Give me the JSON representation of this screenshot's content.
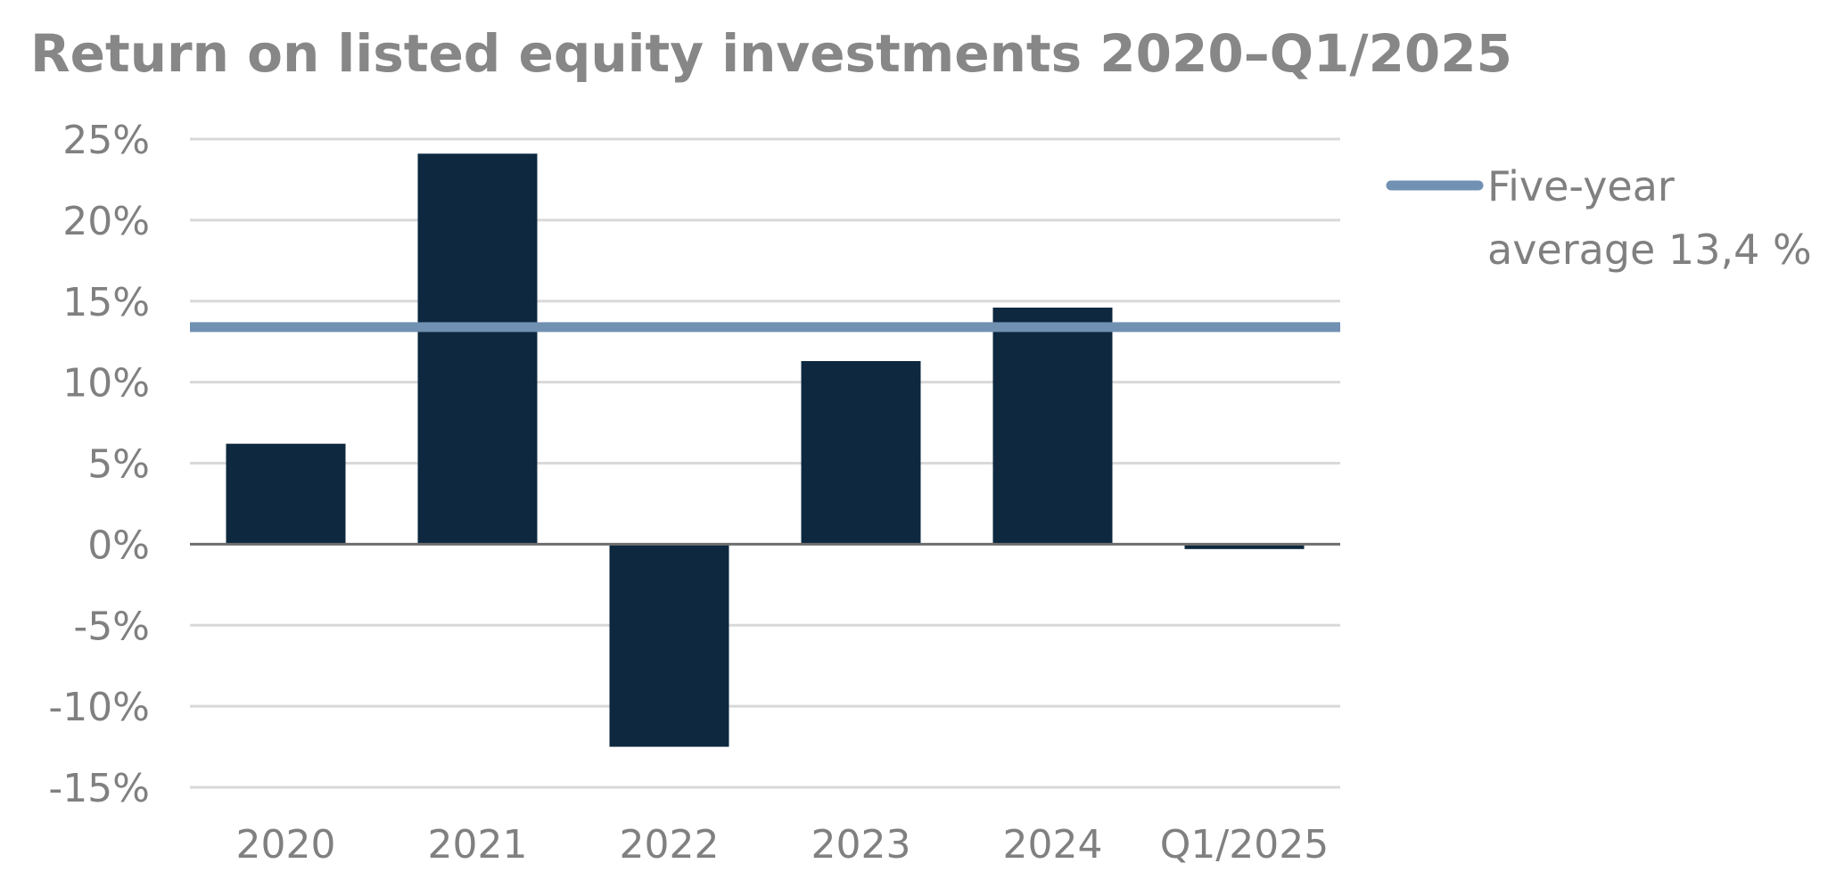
{
  "chart_data": {
    "type": "bar",
    "title": "Return on listed equity investments 2020–Q1/2025",
    "categories": [
      "2020",
      "2021",
      "2022",
      "2023",
      "2024",
      "Q1/2025"
    ],
    "values": [
      6.2,
      24.1,
      -12.5,
      11.3,
      14.6,
      -0.3
    ],
    "ylim": [
      -15,
      25
    ],
    "yticks": [
      25,
      20,
      15,
      10,
      5,
      0,
      -5,
      -10,
      -15
    ],
    "ytick_labels": [
      "25%",
      "20%",
      "15%",
      "10%",
      "5%",
      "0%",
      "-5%",
      "-10%",
      "-15%"
    ],
    "xlabel": "",
    "ylabel": "",
    "grid": true,
    "reference_line": {
      "value": 13.4,
      "label_line1": "Five-year",
      "label_line2": "average 13,4 %"
    },
    "legend_position": "right",
    "colors": {
      "bar": "#0d283f",
      "reference": "#7191b3",
      "grid": "#d9d9d9",
      "zero_axis": "#6e6e6e",
      "text": "#808080",
      "title": "#878787"
    }
  }
}
